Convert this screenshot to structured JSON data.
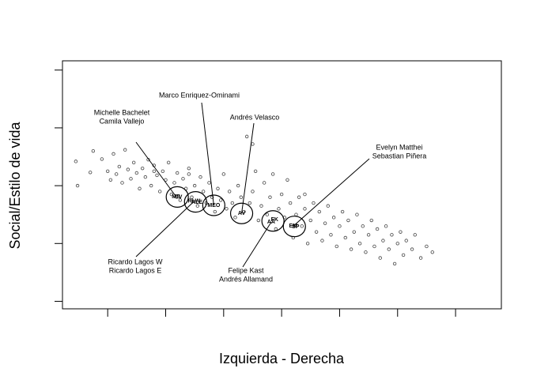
{
  "chart_data": {
    "type": "scatter",
    "xlabel": "Izquierda - Derecha",
    "ylabel": "Social/Estilo de vida",
    "xlim": [
      -3.78,
      3.79
    ],
    "ylim": [
      -2.13,
      2.16
    ],
    "xticks": [
      -3,
      -2,
      -1,
      0,
      1,
      2,
      3
    ],
    "yticks": [
      -2,
      -1,
      0,
      1,
      2
    ],
    "color": "#444444",
    "x": [
      -3.55,
      -3.52,
      -3.3,
      -3.25,
      -3.1,
      -3.0,
      -2.95,
      -2.9,
      -2.85,
      -2.8,
      -2.75,
      -2.7,
      -2.65,
      -2.6,
      -2.55,
      -2.5,
      -2.45,
      -2.4,
      -2.35,
      -2.3,
      -2.25,
      -2.2,
      -2.15,
      -2.1,
      -2.05,
      -2.0,
      -1.95,
      -1.9,
      -1.85,
      -1.8,
      -1.75,
      -1.7,
      -1.65,
      -1.6,
      -1.55,
      -1.5,
      -1.45,
      -1.4,
      -1.35,
      -1.3,
      -1.25,
      -1.2,
      -1.15,
      -1.1,
      -1.05,
      -1.0,
      -0.95,
      -0.9,
      -0.85,
      -0.8,
      -0.75,
      -0.7,
      -0.65,
      -0.6,
      -0.55,
      -0.5,
      -0.45,
      -0.4,
      -0.35,
      -0.3,
      -0.25,
      -0.2,
      -0.15,
      -0.1,
      -0.05,
      0.0,
      0.05,
      0.1,
      0.15,
      0.2,
      0.25,
      0.3,
      0.35,
      0.4,
      0.45,
      0.5,
      0.55,
      0.6,
      0.65,
      0.7,
      0.75,
      0.8,
      0.85,
      0.9,
      0.95,
      1.0,
      1.05,
      1.1,
      1.15,
      1.2,
      1.25,
      1.3,
      1.35,
      1.4,
      1.45,
      1.5,
      1.55,
      1.6,
      1.65,
      1.7,
      1.75,
      1.8,
      1.85,
      1.9,
      1.95,
      2.0,
      2.05,
      2.1,
      2.15,
      2.25,
      2.3,
      2.4,
      2.5,
      2.6,
      -0.5,
      -1.6,
      -2.2,
      0.4
    ],
    "y": [
      0.42,
      0.0,
      0.23,
      0.6,
      0.46,
      0.25,
      0.1,
      0.55,
      0.2,
      0.33,
      0.05,
      0.62,
      0.28,
      0.12,
      0.4,
      0.22,
      -0.05,
      0.3,
      0.15,
      0.45,
      0.0,
      0.35,
      0.18,
      -0.1,
      0.25,
      0.1,
      0.4,
      -0.15,
      0.05,
      0.22,
      -0.25,
      0.12,
      -0.05,
      0.3,
      -0.2,
      0.0,
      -0.35,
      0.15,
      -0.1,
      -0.3,
      0.05,
      -0.2,
      -0.45,
      -0.05,
      -0.25,
      0.2,
      -0.4,
      -0.1,
      -0.3,
      -0.55,
      0.0,
      -0.2,
      -0.45,
      0.85,
      -0.3,
      -0.1,
      0.25,
      -0.6,
      -0.35,
      0.05,
      -0.5,
      -0.2,
      0.2,
      -0.75,
      -0.4,
      -0.15,
      -0.55,
      0.1,
      -0.3,
      -0.9,
      -0.5,
      -0.2,
      -0.7,
      -0.4,
      -1.0,
      -0.6,
      -0.3,
      -0.8,
      -0.45,
      -0.95,
      -0.65,
      -0.35,
      -0.85,
      -0.55,
      -1.05,
      -0.7,
      -0.45,
      -0.9,
      -0.6,
      -1.1,
      -0.8,
      -0.5,
      -1.0,
      -0.7,
      -1.15,
      -0.85,
      -0.6,
      -1.05,
      -0.75,
      -1.25,
      -0.95,
      -0.7,
      -1.1,
      -0.85,
      -1.35,
      -1.0,
      -0.8,
      -1.2,
      -0.95,
      -1.1,
      -0.85,
      -1.25,
      -1.05,
      -1.15,
      0.72,
      0.2,
      0.25,
      -0.15
    ],
    "candidates": [
      {
        "code": "MB",
        "x": -1.82,
        "y": -0.19
      },
      {
        "code": "CV",
        "x": -1.78,
        "y": -0.2
      },
      {
        "code": "RLW",
        "x": -1.51,
        "y": -0.27
      },
      {
        "code": "RLE",
        "x": -1.46,
        "y": -0.29
      },
      {
        "code": "MEO",
        "x": -1.17,
        "y": -0.34
      },
      {
        "code": "AV",
        "x": -0.69,
        "y": -0.48
      },
      {
        "code": "FK",
        "x": -0.12,
        "y": -0.59
      },
      {
        "code": "AA",
        "x": -0.18,
        "y": -0.63
      },
      {
        "code": "EM",
        "x": 0.2,
        "y": -0.7
      },
      {
        "code": "SP",
        "x": 0.24,
        "y": -0.71
      }
    ],
    "annotations": [
      {
        "lines": [
          "Michelle Bachelet",
          "Camila Vallejo"
        ]
      },
      {
        "lines": [
          "Marco Enriquez-Ominami"
        ]
      },
      {
        "lines": [
          "Andrés Velasco"
        ]
      },
      {
        "lines": [
          "Evelyn Matthei",
          "Sebastian Piñera"
        ]
      },
      {
        "lines": [
          "Ricardo Lagos W",
          "Ricardo Lagos E"
        ]
      },
      {
        "lines": [
          "Felipe Kast",
          "Andrés Allamand"
        ]
      }
    ]
  }
}
